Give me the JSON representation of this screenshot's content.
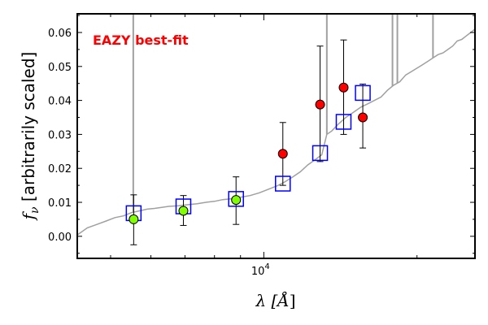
{
  "chart_data": {
    "type": "scatter",
    "annotation": "EAZY best-fit",
    "annotation_color": "#ff0000",
    "xlabel_parts": [
      "λ [",
      "Å",
      "]"
    ],
    "ylabel_parts": [
      "f",
      "ν",
      " [arbitrarily scaled]"
    ],
    "x_scale": "log",
    "xlim": [
      4300,
      26000
    ],
    "ylim": [
      -0.0065,
      0.0655
    ],
    "x_tick_label": "10",
    "x_tick_label_exp": "4",
    "y_ticks": [
      0.0,
      0.01,
      0.02,
      0.03,
      0.04,
      0.05,
      0.06
    ],
    "y_tick_labels": [
      "0.00",
      "0.01",
      "0.02",
      "0.03",
      "0.04",
      "0.05",
      "0.06"
    ],
    "colors": {
      "model": "#a0a0a0",
      "model_photometry": "#0000ff",
      "observed_optical": "#7fff00",
      "observed_nir": "#ff0000",
      "errorbar": "#000000"
    },
    "model_curve": {
      "x": [
        4310,
        4500,
        4700,
        4900,
        5100,
        5300,
        5500,
        5700,
        5900,
        6100,
        6300,
        6500,
        6800,
        7100,
        7400,
        7700,
        8000,
        8300,
        8600,
        9000,
        9400,
        9800,
        10200,
        10600,
        11000,
        11400,
        11800,
        12200,
        12600,
        13000,
        13300,
        13600,
        14000,
        14500,
        15000,
        15500,
        16000,
        16500,
        17000,
        17500,
        18000,
        18500,
        19000,
        19500,
        20000,
        20500,
        21000,
        21500,
        22000,
        22500,
        23000,
        23500,
        24000,
        24500,
        25000,
        25500,
        26000
      ],
      "y": [
        0.0005,
        0.0025,
        0.0035,
        0.0045,
        0.0055,
        0.006,
        0.007,
        0.0075,
        0.008,
        0.0082,
        0.0085,
        0.0088,
        0.009,
        0.0093,
        0.0096,
        0.01,
        0.0103,
        0.0108,
        0.011,
        0.0115,
        0.012,
        0.0128,
        0.0138,
        0.0148,
        0.016,
        0.0175,
        0.019,
        0.021,
        0.0225,
        0.024,
        0.03,
        0.031,
        0.033,
        0.035,
        0.0365,
        0.038,
        0.039,
        0.04,
        0.041,
        0.043,
        0.0445,
        0.0455,
        0.0475,
        0.0485,
        0.0495,
        0.0505,
        0.0515,
        0.0525,
        0.0535,
        0.054,
        0.055,
        0.056,
        0.0575,
        0.058,
        0.059,
        0.06,
        0.061
      ]
    },
    "model_spikes": [
      {
        "x": 5540,
        "y_top": 0.0655
      },
      {
        "x": 13300,
        "y_top": 0.0655
      },
      {
        "x": 17900,
        "y_top": 0.0655
      },
      {
        "x": 18300,
        "y_top": 0.0655
      },
      {
        "x": 21500,
        "y_top": 0.0655
      }
    ],
    "model_photometry": {
      "x": [
        5550,
        6950,
        8820,
        10900,
        12900,
        14350,
        15650
      ],
      "y": [
        0.0068,
        0.0088,
        0.011,
        0.0155,
        0.0245,
        0.0337,
        0.0422
      ]
    },
    "observed_optical": {
      "x": [
        5550,
        6950,
        8820
      ],
      "y": [
        0.005,
        0.0075,
        0.0107
      ],
      "err_low": [
        -0.0025,
        0.0032,
        0.0035
      ],
      "err_high": [
        0.0122,
        0.012,
        0.0175
      ]
    },
    "observed_nir": {
      "x": [
        10900,
        12900,
        14350,
        15650
      ],
      "y": [
        0.0243,
        0.0388,
        0.0438,
        0.035
      ],
      "err_low": [
        0.015,
        0.022,
        0.03,
        0.026
      ],
      "err_high": [
        0.0335,
        0.056,
        0.0578,
        0.0448
      ]
    }
  }
}
